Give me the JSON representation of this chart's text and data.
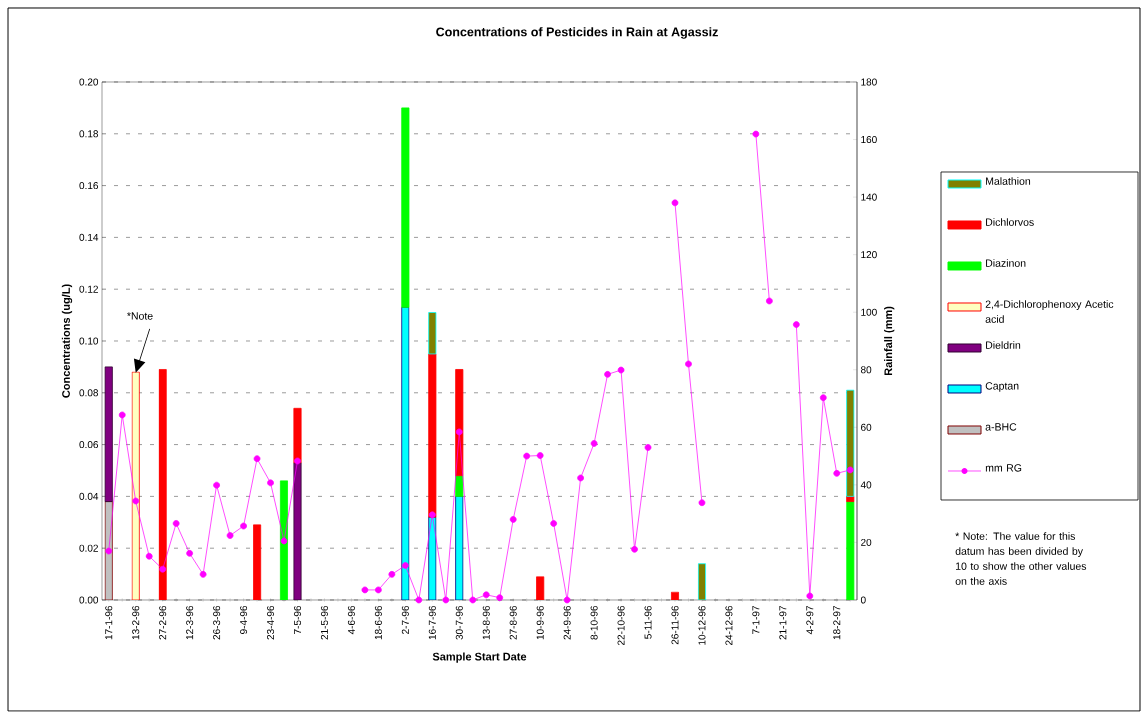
{
  "chart_data": {
    "type": "bar",
    "stacked": true,
    "title": "Concentrations of Pesticides in Rain at Agassiz",
    "xlabel": "Sample Start Date",
    "ylabel": "Concentrations (ug/L)",
    "y2label": "Rainfall (mm)",
    "categories": [
      "17-1-96",
      null,
      "13-2-96",
      null,
      "27-2-96",
      null,
      "12-3-96",
      null,
      "26-3-96",
      null,
      "9-4-96",
      null,
      "23-4-96",
      null,
      "7-5-96",
      null,
      "21-5-96",
      null,
      "4-6-96",
      null,
      "18-6-96",
      null,
      "2-7-96",
      null,
      "16-7-96",
      null,
      "30-7-96",
      null,
      "13-8-96",
      null,
      "27-8-96",
      null,
      "10-9-96",
      null,
      "24-9-96",
      null,
      "8-10-96",
      null,
      "22-10-96",
      null,
      "5-11-96",
      null,
      "26-11-96",
      null,
      "10-12-96",
      null,
      "24-12-96",
      null,
      "7-1-97",
      null,
      "21-1-97",
      null,
      "4-2-97",
      null,
      "18-2-97",
      null
    ],
    "series": [
      {
        "name": "a-BHC",
        "color": "#c0c0c0",
        "values": [
          0.038,
          null,
          null,
          null,
          null,
          null,
          null,
          null,
          null,
          null,
          null,
          null,
          null,
          null,
          null,
          null,
          null,
          null,
          null,
          null,
          null,
          null,
          null,
          null,
          null,
          null,
          null,
          null,
          null,
          null,
          null,
          null,
          null,
          null,
          null,
          null,
          null,
          null,
          null,
          null,
          null,
          null,
          null,
          null,
          null,
          null,
          null,
          null,
          null,
          null,
          null,
          null,
          null,
          null,
          null,
          null
        ]
      },
      {
        "name": "Captan",
        "color": "#00ffff",
        "values": [
          null,
          null,
          null,
          null,
          null,
          null,
          null,
          null,
          null,
          null,
          null,
          null,
          null,
          null,
          null,
          null,
          null,
          null,
          null,
          null,
          null,
          null,
          0.113,
          null,
          0.032,
          null,
          0.04,
          null,
          null,
          null,
          null,
          null,
          null,
          null,
          null,
          null,
          null,
          null,
          null,
          null,
          null,
          null,
          null,
          null,
          null,
          null,
          null,
          null,
          null,
          null,
          null,
          null,
          null,
          null,
          null,
          null
        ]
      },
      {
        "name": "Dieldrin",
        "color": "#800080",
        "values": [
          0.052,
          null,
          null,
          null,
          null,
          null,
          null,
          null,
          null,
          null,
          null,
          null,
          null,
          null,
          0.053,
          null,
          null,
          null,
          null,
          null,
          null,
          null,
          null,
          null,
          null,
          null,
          null,
          null,
          null,
          null,
          null,
          null,
          null,
          null,
          null,
          null,
          null,
          null,
          null,
          null,
          null,
          null,
          null,
          null,
          null,
          null,
          null,
          null,
          null,
          null,
          null,
          null,
          null,
          null,
          null,
          null
        ]
      },
      {
        "name": "2,4-Dichlorophenoxy Acetic acid",
        "color": "#ffffc0",
        "values": [
          null,
          null,
          0.088,
          null,
          null,
          null,
          null,
          null,
          null,
          null,
          null,
          null,
          null,
          null,
          null,
          null,
          null,
          null,
          null,
          null,
          null,
          null,
          null,
          null,
          null,
          null,
          null,
          null,
          null,
          null,
          null,
          null,
          null,
          null,
          null,
          null,
          null,
          null,
          null,
          null,
          null,
          null,
          null,
          null,
          null,
          null,
          null,
          null,
          null,
          null,
          null,
          null,
          null,
          null,
          null,
          null
        ]
      },
      {
        "name": "Diazinon",
        "color": "#00ff00",
        "values": [
          null,
          null,
          null,
          null,
          null,
          null,
          null,
          null,
          null,
          null,
          null,
          null,
          null,
          0.046,
          null,
          null,
          null,
          null,
          null,
          null,
          null,
          null,
          0.077,
          null,
          null,
          null,
          0.008,
          null,
          null,
          null,
          null,
          null,
          null,
          null,
          null,
          null,
          null,
          null,
          null,
          null,
          null,
          null,
          null,
          null,
          null,
          null,
          null,
          null,
          null,
          null,
          null,
          null,
          null,
          null,
          null,
          0.038
        ]
      },
      {
        "name": "Dichlorvos",
        "color": "#ff0000",
        "values": [
          null,
          null,
          null,
          null,
          0.089,
          null,
          null,
          null,
          null,
          null,
          null,
          0.029,
          null,
          null,
          0.021,
          null,
          null,
          null,
          null,
          null,
          null,
          null,
          null,
          null,
          0.063,
          null,
          0.041,
          null,
          null,
          null,
          null,
          null,
          0.009,
          null,
          null,
          null,
          null,
          null,
          null,
          null,
          null,
          null,
          0.003,
          null,
          null,
          null,
          null,
          null,
          null,
          null,
          null,
          null,
          null,
          null,
          null,
          0.002
        ]
      },
      {
        "name": "Malathion",
        "color": "#808000",
        "values": [
          null,
          null,
          null,
          null,
          null,
          null,
          null,
          null,
          null,
          null,
          null,
          null,
          null,
          null,
          null,
          null,
          null,
          null,
          null,
          null,
          null,
          null,
          null,
          null,
          0.016,
          null,
          null,
          null,
          null,
          null,
          null,
          null,
          null,
          null,
          null,
          null,
          null,
          null,
          null,
          null,
          null,
          null,
          null,
          null,
          0.014,
          null,
          null,
          null,
          null,
          null,
          null,
          null,
          null,
          null,
          null,
          0.041
        ]
      },
      {
        "name": "mm RG",
        "type": "line",
        "axis": "y2",
        "marker": "circle",
        "color": "#ff00ff",
        "values": [
          17.0,
          64.3,
          34.4,
          15.2,
          10.7,
          26.6,
          16.2,
          8.9,
          39.9,
          22.4,
          25.7,
          49.1,
          40.7,
          20.5,
          48.3,
          null,
          null,
          null,
          null,
          3.5,
          3.5,
          8.9,
          12.0,
          0,
          29.6,
          0,
          58.4,
          0,
          1.8,
          0.8,
          28.0,
          50.0,
          50.2,
          26.6,
          0,
          42.4,
          54.4,
          78.4,
          79.9,
          17.6,
          53.0,
          null,
          138.0,
          82.0,
          33.8,
          null,
          null,
          null,
          161.9,
          103.9,
          null,
          95.7,
          1.4,
          70.3,
          44.0,
          45.2
        ]
      }
    ],
    "ylim": [
      0,
      0.2
    ],
    "yticks": [
      {
        "value": 0,
        "label": "0.00"
      },
      {
        "value": 0.02,
        "label": "0.02"
      },
      {
        "value": 0.04,
        "label": "0.04"
      },
      {
        "value": 0.06,
        "label": "0.06"
      },
      {
        "value": 0.08,
        "label": "0.08"
      },
      {
        "value": 0.1,
        "label": "0.10"
      },
      {
        "value": 0.12,
        "label": "0.12"
      },
      {
        "value": 0.14,
        "label": "0.14"
      },
      {
        "value": 0.16,
        "label": "0.16"
      },
      {
        "value": 0.18,
        "label": "0.18"
      },
      {
        "value": 0.2,
        "label": "0.20"
      }
    ],
    "y2lim": [
      0,
      180
    ],
    "y2ticks": [
      0,
      20,
      40,
      60,
      80,
      100,
      120,
      140,
      160,
      180
    ],
    "grid": "y",
    "legend": "right",
    "annotations": [
      "*Note",
      "* Note:  The value for this datum has been divided by 10 to show the other values on the axis"
    ]
  }
}
